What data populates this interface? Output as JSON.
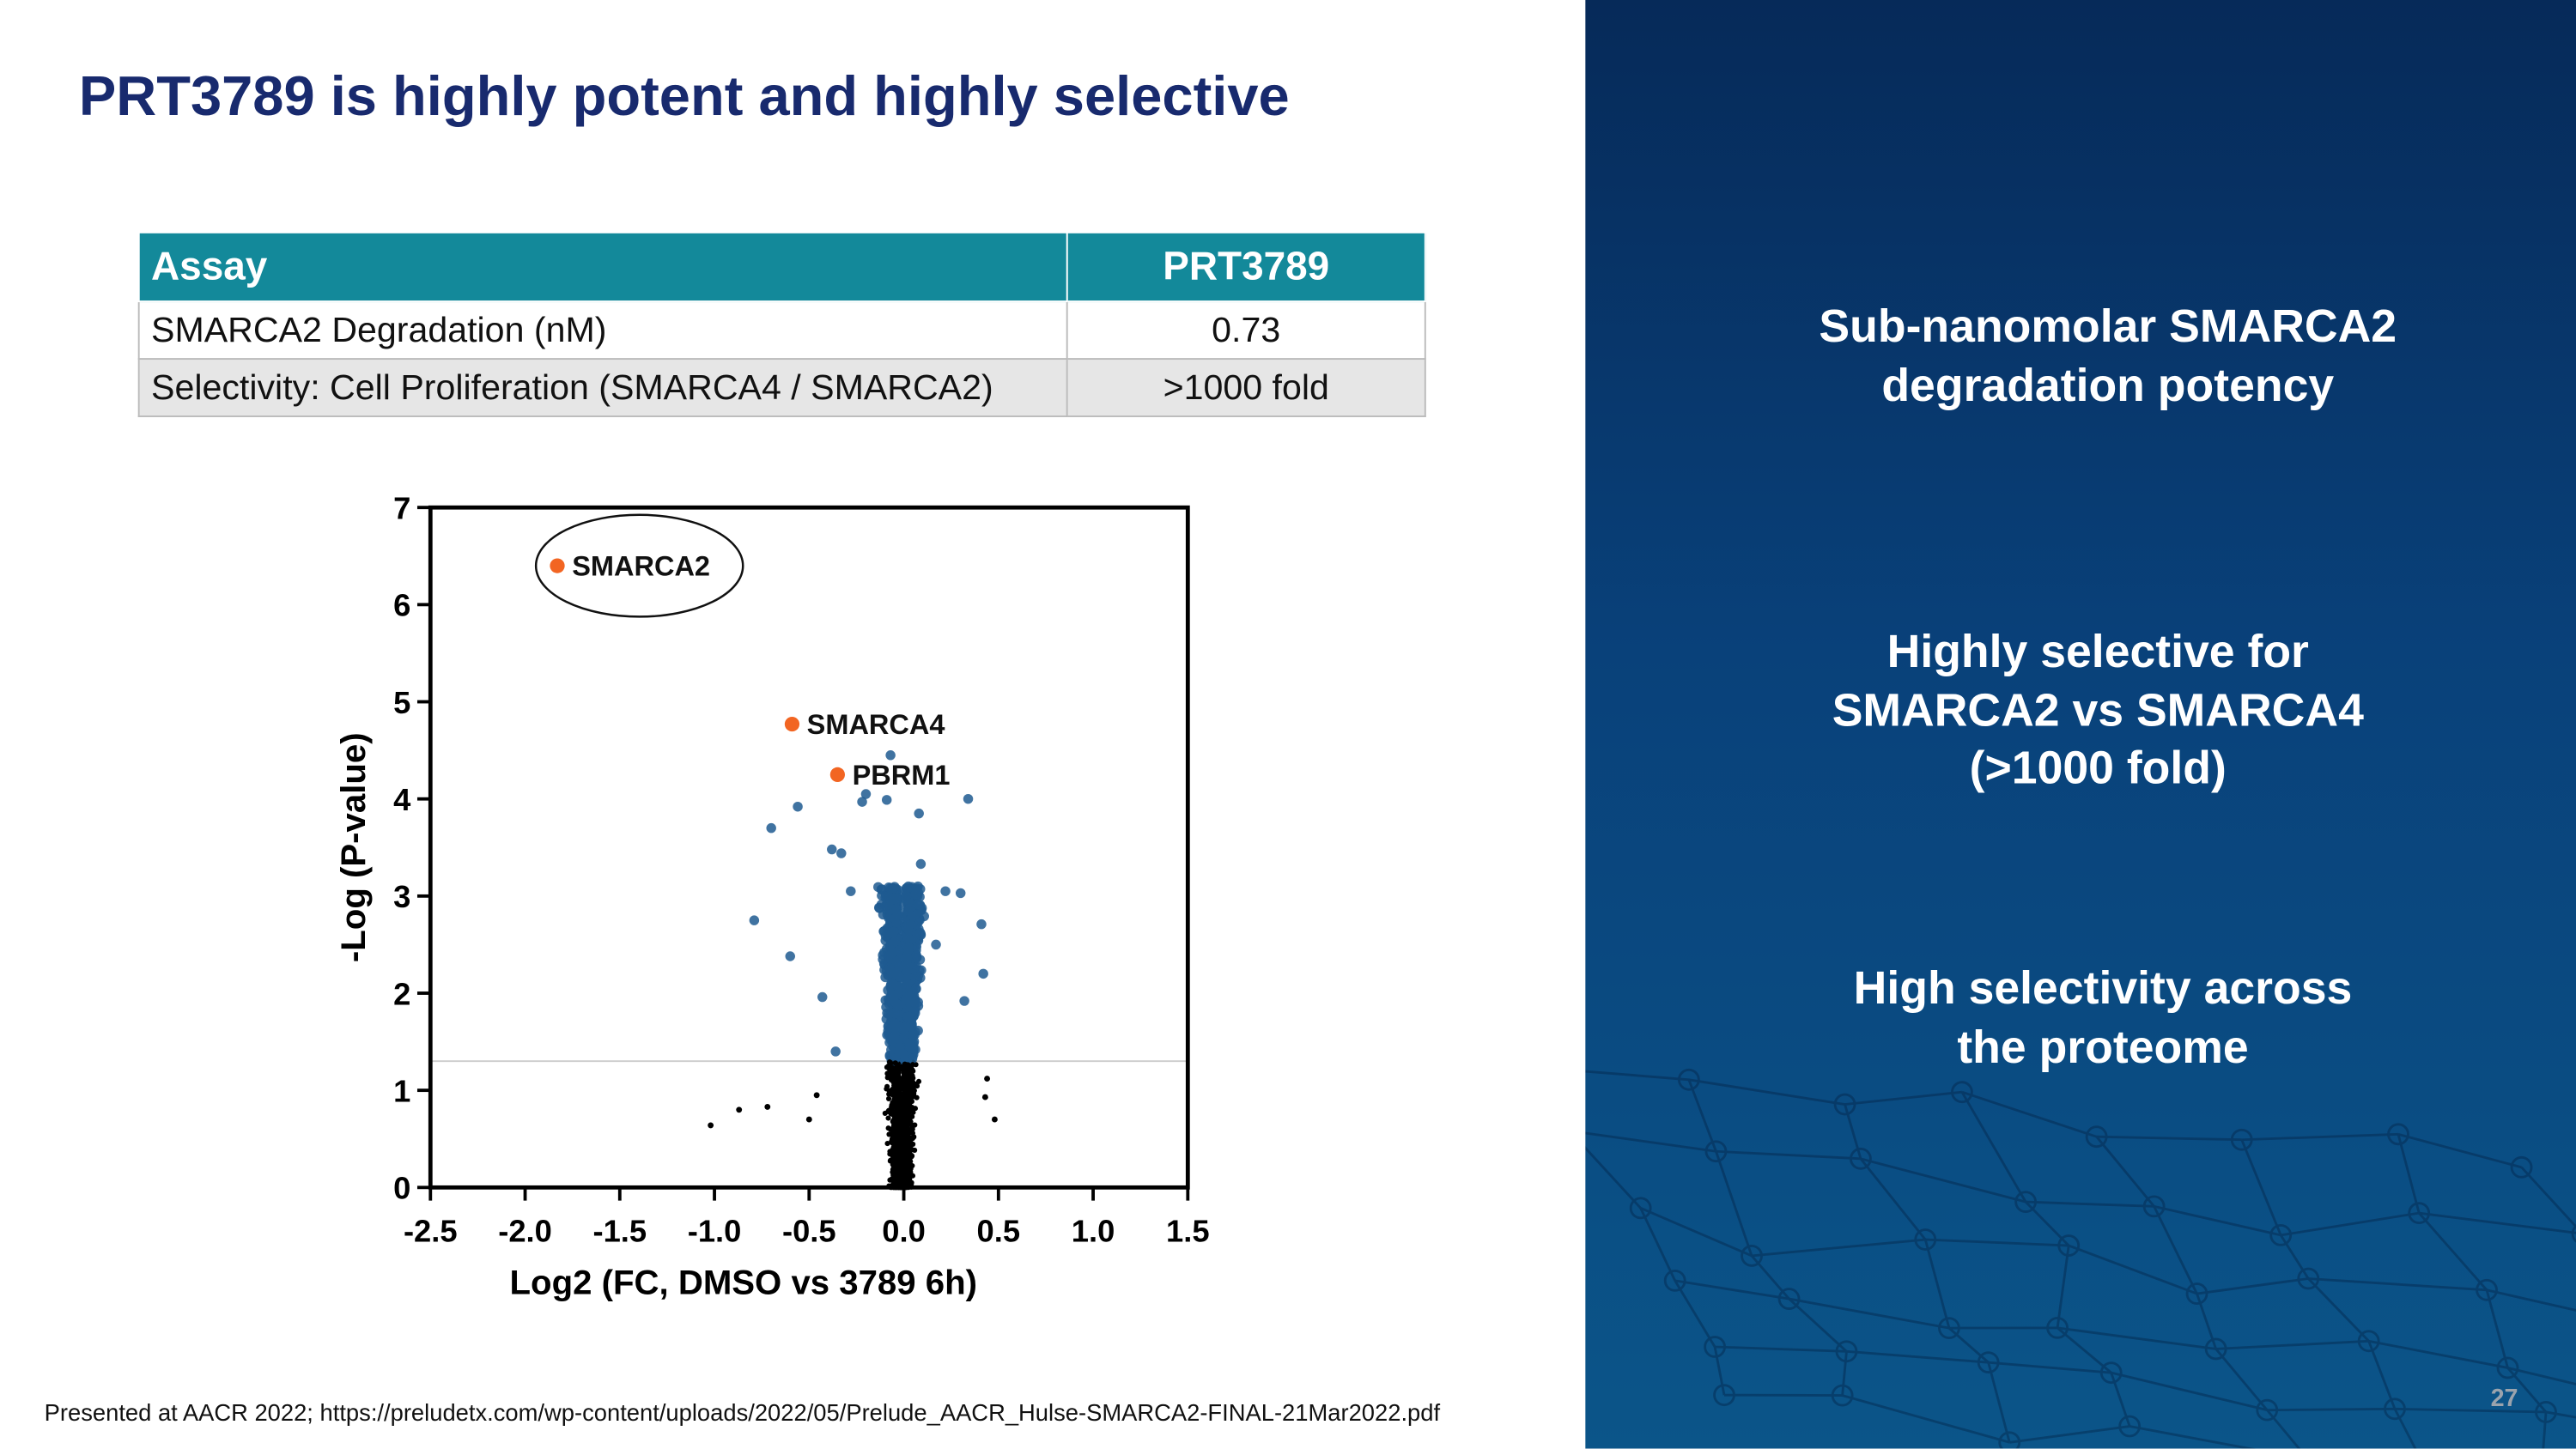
{
  "title": "PRT3789 is highly potent and highly selective",
  "table": {
    "headers": [
      "Assay",
      "PRT3789"
    ],
    "rows": [
      [
        "SMARCA2 Degradation (nM)",
        "0.73"
      ],
      [
        "Selectivity: Cell Proliferation (SMARCA4 / SMARCA2)",
        ">1000 fold"
      ]
    ]
  },
  "right_panel": {
    "points": [
      [
        "Sub-nanomolar SMARCA2",
        "degradation potency"
      ],
      [
        "Highly selective for",
        "SMARCA2 vs SMARCA4",
        "(>1000 fold)"
      ],
      [
        "High selectivity across",
        "the proteome"
      ]
    ],
    "page_number": "27"
  },
  "footnote": "Presented at AACR 2022; https://preludetx.com/wp-content/uploads/2022/05/Prelude_AACR_Hulse-SMARCA2-FINAL-21Mar2022.pdf",
  "chart_data": {
    "type": "scatter",
    "title": "",
    "xlabel": "Log2 (FC, DMSO vs 3789 6h)",
    "ylabel": "-Log (P-value)",
    "xlim": [
      -2.5,
      1.5
    ],
    "ylim": [
      0,
      7
    ],
    "xticks": [
      "-2.5",
      "-2.0",
      "-1.5",
      "-1.0",
      "-0.5",
      "0.0",
      "0.5",
      "1.0",
      "1.5"
    ],
    "yticks": [
      "0",
      "1",
      "2",
      "3",
      "4",
      "5",
      "6",
      "7"
    ],
    "significance_threshold": 1.3,
    "colors": {
      "highlight": "#f26522",
      "significant": "#1f5a91",
      "nonsignificant": "#000000",
      "threshold": "#cccccc"
    },
    "highlighted": [
      {
        "label": "SMARCA2",
        "x": -1.83,
        "y": 6.4,
        "circled": true
      },
      {
        "label": "SMARCA4",
        "x": -0.59,
        "y": 4.77
      },
      {
        "label": "PBRM1",
        "x": -0.35,
        "y": 4.25
      }
    ],
    "significant_outliers": [
      [
        -0.07,
        4.45
      ],
      [
        -0.56,
        3.92
      ],
      [
        -0.7,
        3.7
      ],
      [
        -0.79,
        2.75
      ],
      [
        -0.6,
        2.38
      ],
      [
        -0.43,
        1.96
      ],
      [
        0.34,
        4.0
      ],
      [
        0.08,
        3.85
      ],
      [
        -0.2,
        4.05
      ],
      [
        -0.22,
        3.97
      ],
      [
        -0.09,
        3.99
      ],
      [
        -0.38,
        3.48
      ],
      [
        -0.33,
        3.44
      ],
      [
        0.09,
        3.33
      ],
      [
        0.41,
        2.71
      ],
      [
        0.42,
        2.2
      ],
      [
        0.32,
        1.92
      ],
      [
        0.3,
        3.03
      ],
      [
        0.22,
        3.05
      ],
      [
        -0.28,
        3.05
      ],
      [
        0.17,
        2.5
      ],
      [
        -0.36,
        1.4
      ]
    ],
    "nonsignificant_outliers": [
      [
        -1.02,
        0.64
      ],
      [
        -0.87,
        0.8
      ],
      [
        -0.72,
        0.83
      ],
      [
        0.44,
        1.12
      ],
      [
        0.43,
        0.93
      ],
      [
        0.48,
        0.7
      ],
      [
        -0.5,
        0.7
      ],
      [
        -0.46,
        0.95
      ]
    ]
  }
}
